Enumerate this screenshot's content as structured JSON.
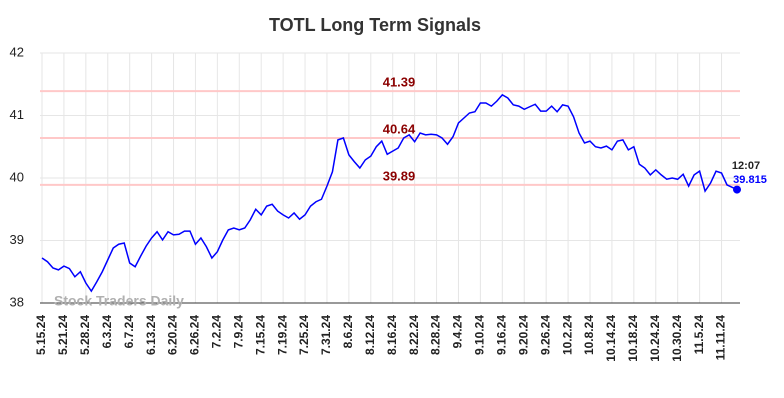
{
  "chart_data": {
    "type": "line",
    "title": "TOTL Long Term Signals",
    "categories": [
      "5.15.24",
      null,
      null,
      null,
      "5.21.24",
      null,
      null,
      null,
      "5.28.24",
      null,
      null,
      null,
      "6.3.24",
      null,
      null,
      null,
      "6.7.24",
      null,
      null,
      null,
      "6.13.24",
      null,
      null,
      null,
      "6.20.24",
      null,
      null,
      null,
      "6.26.24",
      null,
      null,
      null,
      "7.2.24",
      null,
      null,
      null,
      "7.9.24",
      null,
      null,
      null,
      "7.15.24",
      null,
      null,
      null,
      "7.19.24",
      null,
      null,
      null,
      "7.25.24",
      null,
      null,
      null,
      "7.31.24",
      null,
      null,
      null,
      "8.6.24",
      null,
      null,
      null,
      "8.12.24",
      null,
      null,
      null,
      "8.16.24",
      null,
      null,
      null,
      "8.22.24",
      null,
      null,
      null,
      "8.28.24",
      null,
      null,
      null,
      "9.4.24",
      null,
      null,
      null,
      "9.10.24",
      null,
      null,
      null,
      "9.16.24",
      null,
      null,
      null,
      "9.20.24",
      null,
      null,
      null,
      "9.26.24",
      null,
      null,
      null,
      "10.2.24",
      null,
      null,
      null,
      "10.8.24",
      null,
      null,
      null,
      "10.14.24",
      null,
      null,
      null,
      "10.18.24",
      null,
      null,
      null,
      "10.24.24",
      null,
      null,
      null,
      "10.30.24",
      null,
      null,
      null,
      "11.5.24",
      null,
      null,
      null,
      "11.11.24",
      null,
      null
    ],
    "values": [
      38.72,
      38.66,
      38.56,
      38.53,
      38.59,
      38.55,
      38.42,
      38.5,
      38.32,
      38.19,
      38.34,
      38.5,
      38.69,
      38.88,
      38.94,
      38.96,
      38.64,
      38.58,
      38.75,
      38.91,
      39.04,
      39.14,
      39.01,
      39.14,
      39.09,
      39.1,
      39.15,
      39.15,
      38.94,
      39.04,
      38.9,
      38.72,
      38.82,
      39.01,
      39.17,
      39.2,
      39.17,
      39.2,
      39.33,
      39.5,
      39.41,
      39.55,
      39.58,
      39.47,
      39.41,
      39.36,
      39.44,
      39.34,
      39.41,
      39.55,
      39.62,
      39.66,
      39.87,
      40.1,
      40.61,
      40.64,
      40.37,
      40.26,
      40.16,
      40.29,
      40.35,
      40.5,
      40.59,
      40.38,
      40.43,
      40.48,
      40.64,
      40.69,
      40.58,
      40.72,
      40.69,
      40.7,
      40.69,
      40.64,
      40.54,
      40.66,
      40.88,
      40.96,
      41.04,
      41.06,
      41.2,
      41.2,
      41.15,
      41.23,
      41.33,
      41.28,
      41.17,
      41.15,
      41.1,
      41.14,
      41.18,
      41.07,
      41.07,
      41.15,
      41.06,
      41.17,
      41.15,
      40.98,
      40.72,
      40.56,
      40.59,
      40.5,
      40.48,
      40.51,
      40.45,
      40.59,
      40.61,
      40.45,
      40.5,
      40.22,
      40.16,
      40.05,
      40.13,
      40.05,
      39.98,
      40.0,
      39.98,
      40.06,
      39.87,
      40.05,
      40.11,
      39.79,
      39.92,
      40.11,
      40.08,
      39.89,
      39.815
    ],
    "color": "#0000ff",
    "signal_lines": [
      41.39,
      40.64,
      39.89
    ],
    "signal_color": "#8b0000",
    "signal_line_color": "#ffc8c8",
    "last_time": "12:07",
    "watermark": "Stock Traders Daily",
    "ylim": [
      38,
      42
    ],
    "yticks": [
      38,
      39,
      40,
      41,
      42
    ],
    "grid": true
  }
}
